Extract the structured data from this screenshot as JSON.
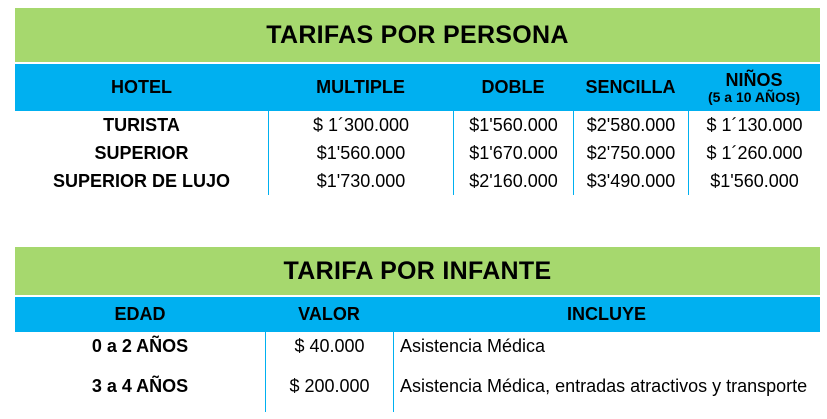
{
  "table_persona": {
    "title": "TARIFAS POR PERSONA",
    "headers": [
      "HOTEL",
      "MULTIPLE",
      "DOBLE",
      "SENCILLA",
      "NIÑOS"
    ],
    "ninos_sub": "(5 a 10 AÑOS)",
    "rows": [
      [
        "TURISTA",
        "$ 1´300.000",
        "$1'560.000",
        "$2'580.000",
        "$ 1´130.000"
      ],
      [
        "SUPERIOR",
        "$1'560.000",
        "$1'670.000",
        "$2'750.000",
        "$ 1´260.000"
      ],
      [
        "SUPERIOR DE LUJO",
        "$1'730.000",
        "$2'160.000",
        "$3'490.000",
        "$1'560.000"
      ]
    ]
  },
  "table_infante": {
    "title": "TARIFA POR INFANTE",
    "headers": [
      "EDAD",
      "VALOR",
      "INCLUYE"
    ],
    "rows": [
      [
        "0 a 2 AÑOS",
        "$ 40.000",
        "Asistencia Médica"
      ],
      [
        "3 a 4 AÑOS",
        "$ 200.000",
        "Asistencia Médica, entradas atractivos y transporte"
      ]
    ]
  },
  "colors": {
    "title_bg": "#a6d86e",
    "header_bg": "#00b0f0"
  }
}
